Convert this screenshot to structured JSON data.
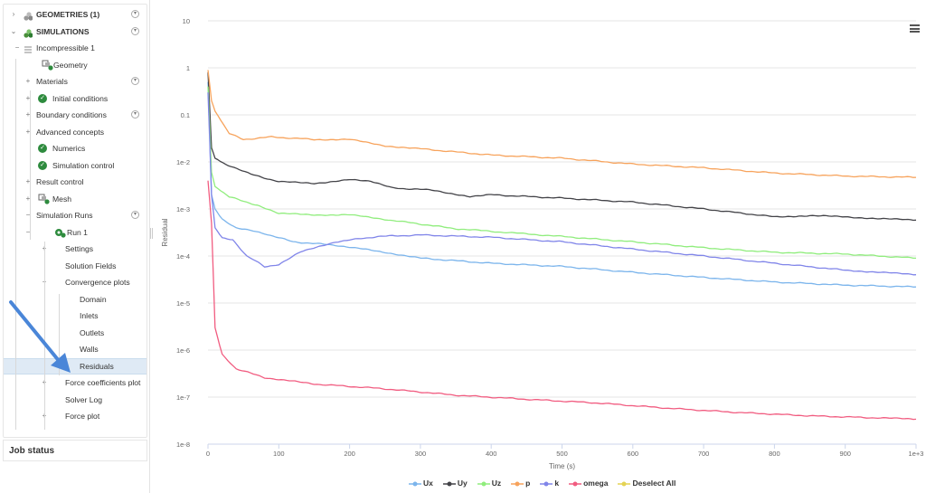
{
  "tree": {
    "rows": [
      {
        "label": "GEOMETRIES (1)",
        "indent": 0,
        "expander": "›",
        "icon": "geometry-cube-icon",
        "bold": true,
        "menu": true
      },
      {
        "label": "SIMULATIONS",
        "indent": 0,
        "expander": "⌄",
        "icon": "simulation-icon",
        "bold": true,
        "menu": true
      },
      {
        "label": "Incompressible 1",
        "indent": 1,
        "expander": "−",
        "icon": "list-icon"
      },
      {
        "label": "Geometry",
        "indent": 2,
        "icon": "geometry-check-icon"
      },
      {
        "label": "Materials",
        "indent": 2,
        "expander": "+",
        "menu": true
      },
      {
        "label": "Initial conditions",
        "indent": 2,
        "expander": "+",
        "icon": "check-circle-icon"
      },
      {
        "label": "Boundary conditions",
        "indent": 2,
        "expander": "+",
        "menu": true
      },
      {
        "label": "Advanced concepts",
        "indent": 2,
        "expander": "+"
      },
      {
        "label": "Numerics",
        "indent": 2,
        "icon": "check-circle-icon"
      },
      {
        "label": "Simulation control",
        "indent": 2,
        "icon": "check-circle-icon"
      },
      {
        "label": "Result control",
        "indent": 2,
        "expander": "+"
      },
      {
        "label": "Mesh",
        "indent": 2,
        "expander": "+",
        "icon": "mesh-check-icon"
      },
      {
        "label": "Simulation Runs",
        "indent": 2,
        "expander": "−",
        "menu": true
      },
      {
        "label": "Run 1",
        "indent": 3,
        "expander": "−",
        "icon": "gear-check-icon"
      },
      {
        "label": "Settings",
        "indent": 4,
        "expander": "+"
      },
      {
        "label": "Solution Fields",
        "indent": 4
      },
      {
        "label": "Convergence plots",
        "indent": 4,
        "expander": "−"
      },
      {
        "label": "Domain",
        "indent": 5
      },
      {
        "label": "Inlets",
        "indent": 5
      },
      {
        "label": "Outlets",
        "indent": 5
      },
      {
        "label": "Walls",
        "indent": 5
      },
      {
        "label": "Residuals",
        "indent": 5,
        "selected": true
      },
      {
        "label": "Force coefficients plot",
        "indent": 4,
        "expander": "+"
      },
      {
        "label": "Solver Log",
        "indent": 4
      },
      {
        "label": "Force plot",
        "indent": 4,
        "expander": "+"
      }
    ]
  },
  "job_status": {
    "label": "Job status"
  },
  "chart_data": {
    "type": "line",
    "xlabel": "Time (s)",
    "ylabel": "Residual",
    "yscale": "log",
    "ylim": [
      1e-08,
      10
    ],
    "xlim": [
      0,
      1000
    ],
    "x_tick_labels": [
      "0",
      "100",
      "200",
      "300",
      "400",
      "500",
      "600",
      "700",
      "800",
      "900",
      "1e+3"
    ],
    "x_tick_values": [
      0,
      100,
      200,
      300,
      400,
      500,
      600,
      700,
      800,
      900,
      1000
    ],
    "y_tick_labels": [
      "10",
      "1",
      "0.1",
      "1e-2",
      "1e-3",
      "1e-4",
      "1e-5",
      "1e-6",
      "1e-7",
      "1e-8"
    ],
    "y_tick_values": [
      10,
      1,
      0.1,
      0.01,
      0.001,
      0.0001,
      1e-05,
      1e-06,
      1e-07,
      1e-08
    ],
    "grid": true,
    "legend_position": "bottom",
    "series": [
      {
        "name": "Ux",
        "color": "#7cb5ec",
        "points": [
          [
            0,
            0.5
          ],
          [
            5,
            0.002
          ],
          [
            10,
            0.001
          ],
          [
            20,
            0.0006
          ],
          [
            40,
            0.0004
          ],
          [
            80,
            0.0003
          ],
          [
            120,
            0.0002
          ],
          [
            180,
            0.00017
          ],
          [
            250,
            0.00012
          ],
          [
            300,
            9e-05
          ],
          [
            400,
            7e-05
          ],
          [
            500,
            6e-05
          ],
          [
            600,
            4.5e-05
          ],
          [
            700,
            3.5e-05
          ],
          [
            800,
            2.8e-05
          ],
          [
            900,
            2.4e-05
          ],
          [
            1000,
            2.2e-05
          ]
        ]
      },
      {
        "name": "Uy",
        "color": "#434348",
        "points": [
          [
            0,
            0.8
          ],
          [
            5,
            0.02
          ],
          [
            10,
            0.012
          ],
          [
            25,
            0.009
          ],
          [
            60,
            0.0055
          ],
          [
            100,
            0.0038
          ],
          [
            150,
            0.0035
          ],
          [
            200,
            0.0042
          ],
          [
            230,
            0.0038
          ],
          [
            260,
            0.0028
          ],
          [
            320,
            0.0025
          ],
          [
            370,
            0.0018
          ],
          [
            400,
            0.002
          ],
          [
            500,
            0.0017
          ],
          [
            600,
            0.0014
          ],
          [
            700,
            0.001
          ],
          [
            800,
            0.00068
          ],
          [
            850,
            0.00072
          ],
          [
            900,
            0.00068
          ],
          [
            950,
            0.00062
          ],
          [
            1000,
            0.00058
          ]
        ]
      },
      {
        "name": "Uz",
        "color": "#90ed7d",
        "points": [
          [
            0,
            0.4
          ],
          [
            5,
            0.006
          ],
          [
            10,
            0.003
          ],
          [
            30,
            0.0018
          ],
          [
            70,
            0.0012
          ],
          [
            100,
            0.0008
          ],
          [
            150,
            0.00075
          ],
          [
            200,
            0.00075
          ],
          [
            250,
            0.0006
          ],
          [
            350,
            0.00038
          ],
          [
            500,
            0.00026
          ],
          [
            600,
            0.0002
          ],
          [
            700,
            0.00015
          ],
          [
            800,
            0.00012
          ],
          [
            900,
            0.00011
          ],
          [
            1000,
            9e-05
          ]
        ]
      },
      {
        "name": "p",
        "color": "#f7a35c",
        "points": [
          [
            0,
            0.9
          ],
          [
            5,
            0.2
          ],
          [
            10,
            0.12
          ],
          [
            30,
            0.04
          ],
          [
            50,
            0.03
          ],
          [
            90,
            0.034
          ],
          [
            150,
            0.03
          ],
          [
            200,
            0.03
          ],
          [
            250,
            0.022
          ],
          [
            300,
            0.019
          ],
          [
            400,
            0.014
          ],
          [
            500,
            0.012
          ],
          [
            600,
            0.009
          ],
          [
            700,
            0.0075
          ],
          [
            800,
            0.0058
          ],
          [
            900,
            0.005
          ],
          [
            1000,
            0.0047
          ]
        ]
      },
      {
        "name": "k",
        "color": "#8085e9",
        "points": [
          [
            0,
            0.3
          ],
          [
            5,
            0.002
          ],
          [
            10,
            0.0004
          ],
          [
            20,
            0.00024
          ],
          [
            35,
            0.00022
          ],
          [
            55,
            0.0001
          ],
          [
            80,
            6e-05
          ],
          [
            100,
            6.5e-05
          ],
          [
            130,
            0.00012
          ],
          [
            180,
            0.0002
          ],
          [
            240,
            0.00026
          ],
          [
            300,
            0.00028
          ],
          [
            400,
            0.00025
          ],
          [
            500,
            0.0002
          ],
          [
            600,
            0.00014
          ],
          [
            700,
            0.0001
          ],
          [
            800,
            7e-05
          ],
          [
            900,
            5e-05
          ],
          [
            950,
            4.5e-05
          ],
          [
            1000,
            4e-05
          ]
        ]
      },
      {
        "name": "omega",
        "color": "#f15c80",
        "points": [
          [
            0,
            0.004
          ],
          [
            5,
            0.0005
          ],
          [
            10,
            3e-06
          ],
          [
            20,
            8e-07
          ],
          [
            40,
            4e-07
          ],
          [
            80,
            2.6e-07
          ],
          [
            150,
            1.9e-07
          ],
          [
            250,
            1.5e-07
          ],
          [
            350,
            1.1e-07
          ],
          [
            450,
            9e-08
          ],
          [
            550,
            7.5e-08
          ],
          [
            650,
            5.8e-08
          ],
          [
            750,
            4.7e-08
          ],
          [
            850,
            4e-08
          ],
          [
            950,
            3.6e-08
          ],
          [
            1000,
            3.4e-08
          ]
        ]
      }
    ],
    "legend_extra": {
      "name": "Deselect All",
      "color": "#e4d354"
    }
  }
}
